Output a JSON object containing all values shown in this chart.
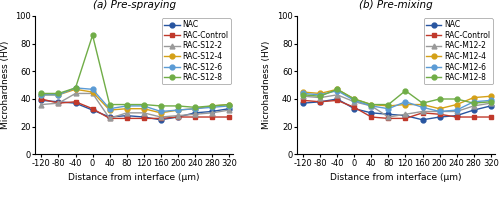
{
  "x": [
    -120,
    -80,
    -40,
    0,
    40,
    80,
    120,
    160,
    200,
    240,
    280,
    320
  ],
  "ylim": [
    0,
    100
  ],
  "yticks": [
    0,
    20,
    40,
    60,
    80,
    100
  ],
  "xticks": [
    -120,
    -80,
    -40,
    0,
    40,
    80,
    120,
    160,
    200,
    240,
    280,
    320
  ],
  "xlim": [
    -135,
    330
  ],
  "markersize": 3.5,
  "linewidth": 1.0,
  "legend_fontsize": 5.5,
  "axis_fontsize": 6.5,
  "tick_fontsize": 6.0,
  "title_fontsize": 7.5,
  "subplot_a": {
    "title": "(a) Pre-spraying",
    "ylabel": "Microhardness (HV)",
    "xlabel": "Distance from interface (μm)",
    "series": [
      {
        "label": "NAC",
        "color": "#2855a0",
        "marker": "o",
        "values": [
          39,
          38,
          37,
          32,
          27,
          28,
          27,
          25,
          27,
          30,
          31,
          33
        ]
      },
      {
        "label": "RAC-Control",
        "color": "#c0392b",
        "marker": "s",
        "values": [
          40,
          37,
          38,
          33,
          26,
          26,
          26,
          26,
          27,
          27,
          27,
          27
        ]
      },
      {
        "label": "RAC-S12-2",
        "color": "#999999",
        "marker": "^",
        "values": [
          36,
          37,
          44,
          44,
          26,
          30,
          30,
          27,
          28,
          29,
          30,
          32
        ]
      },
      {
        "label": "RAC-S12-4",
        "color": "#d4a017",
        "marker": "o",
        "values": [
          43,
          43,
          47,
          45,
          32,
          33,
          33,
          30,
          32,
          33,
          35,
          36
        ]
      },
      {
        "label": "RAC-S12-6",
        "color": "#5b9bd5",
        "marker": "o",
        "values": [
          43,
          43,
          48,
          47,
          33,
          35,
          35,
          31,
          32,
          33,
          34,
          35
        ]
      },
      {
        "label": "RAC-S12-8",
        "color": "#70ad47",
        "marker": "o",
        "values": [
          44,
          44,
          48,
          86,
          36,
          36,
          36,
          35,
          35,
          34,
          35,
          36
        ]
      }
    ]
  },
  "subplot_b": {
    "title": "(b) Pre-mixing",
    "ylabel": "Microhardness (HV)",
    "xlabel": "Distance from interface (μm)",
    "series": [
      {
        "label": "NAC",
        "color": "#2855a0",
        "marker": "o",
        "values": [
          37,
          38,
          40,
          33,
          30,
          29,
          28,
          25,
          27,
          28,
          32,
          35
        ]
      },
      {
        "label": "RAC-Control",
        "color": "#c0392b",
        "marker": "s",
        "values": [
          39,
          38,
          39,
          34,
          27,
          26,
          26,
          30,
          29,
          27,
          27,
          27
        ]
      },
      {
        "label": "RAC-M12-2",
        "color": "#999999",
        "marker": "^",
        "values": [
          42,
          41,
          43,
          38,
          35,
          27,
          29,
          31,
          31,
          31,
          35,
          37
        ]
      },
      {
        "label": "RAC-M12-4",
        "color": "#d4a017",
        "marker": "o",
        "values": [
          45,
          44,
          47,
          40,
          36,
          35,
          36,
          36,
          33,
          36,
          41,
          42
        ]
      },
      {
        "label": "RAC-M12-6",
        "color": "#5b9bd5",
        "marker": "o",
        "values": [
          44,
          43,
          46,
          39,
          35,
          33,
          38,
          34,
          31,
          32,
          38,
          39
        ]
      },
      {
        "label": "RAC-M12-8",
        "color": "#70ad47",
        "marker": "o",
        "values": [
          43,
          42,
          47,
          40,
          36,
          36,
          46,
          37,
          40,
          40,
          37,
          38
        ]
      }
    ]
  }
}
